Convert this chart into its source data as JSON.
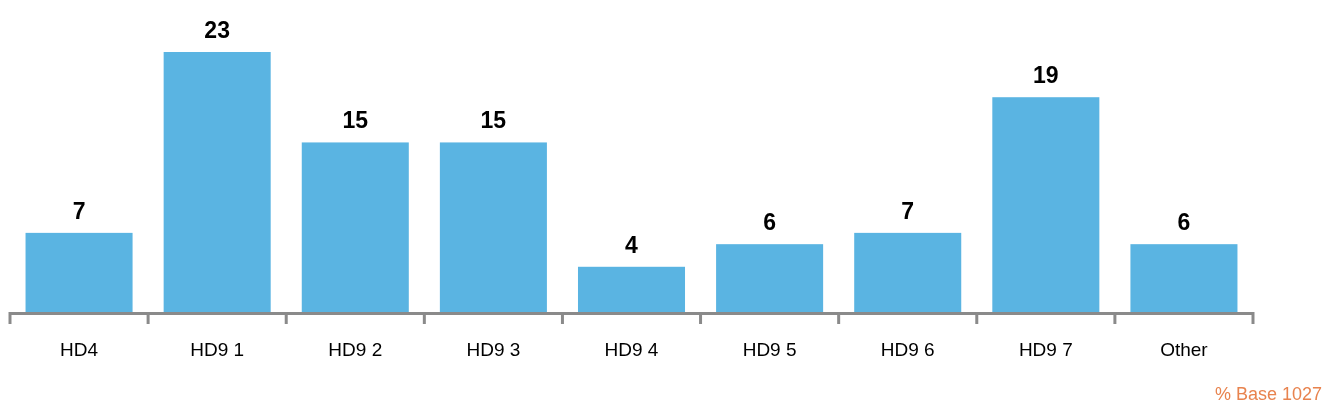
{
  "chart_data": {
    "type": "bar",
    "categories": [
      "HD4",
      "HD9 1",
      "HD9 2",
      "HD9 3",
      "HD9 4",
      "HD9 5",
      "HD9 6",
      "HD9 7",
      "Other"
    ],
    "values": [
      7,
      23,
      15,
      15,
      4,
      6,
      7,
      19,
      6
    ],
    "color": "#5ab4e2",
    "data_labels": true,
    "annotations": [
      "% Base 1027"
    ]
  }
}
